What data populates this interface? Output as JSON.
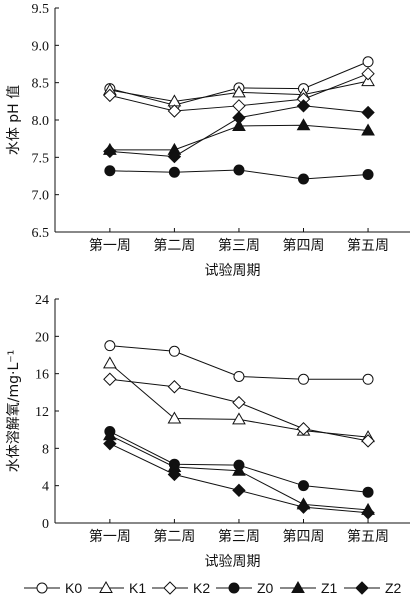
{
  "chart_data": [
    {
      "type": "line",
      "categories": [
        "第一周",
        "第二周",
        "第三周",
        "第四周",
        "第五周"
      ],
      "xlabel": "试验周期",
      "ylabel": "水体 pH 值",
      "ylim": [
        6.5,
        9.5
      ],
      "yticks": [
        "6.5",
        "7.0",
        "7.5",
        "8.0",
        "8.5",
        "9.0",
        "9.5"
      ],
      "series": [
        {
          "name": "K0",
          "values": [
            8.42,
            8.2,
            8.43,
            8.42,
            8.78
          ]
        },
        {
          "name": "K1",
          "values": [
            8.4,
            8.25,
            8.37,
            8.34,
            8.52
          ]
        },
        {
          "name": "K2",
          "values": [
            8.33,
            8.12,
            8.19,
            8.28,
            8.62
          ]
        },
        {
          "name": "Z0",
          "values": [
            7.32,
            7.3,
            7.33,
            7.21,
            7.27
          ]
        },
        {
          "name": "Z1",
          "values": [
            7.6,
            7.6,
            7.92,
            7.93,
            7.86
          ]
        },
        {
          "name": "Z2",
          "values": [
            7.58,
            7.51,
            8.03,
            8.19,
            8.1
          ]
        }
      ]
    },
    {
      "type": "line",
      "categories": [
        "第一周",
        "第二周",
        "第三周",
        "第四周",
        "第五周"
      ],
      "xlabel": "试验周期",
      "ylabel": "水体溶解氧/mg·L⁻¹",
      "ylim": [
        0,
        24
      ],
      "yticks": [
        "0",
        "4",
        "8",
        "12",
        "16",
        "20",
        "24"
      ],
      "series": [
        {
          "name": "K0",
          "values": [
            19.0,
            18.4,
            15.7,
            15.4,
            15.4
          ]
        },
        {
          "name": "K1",
          "values": [
            17.1,
            11.2,
            11.1,
            9.9,
            9.2
          ]
        },
        {
          "name": "K2",
          "values": [
            15.4,
            14.6,
            12.9,
            10.1,
            8.8
          ]
        },
        {
          "name": "Z0",
          "values": [
            9.8,
            6.3,
            6.2,
            4.0,
            3.3
          ]
        },
        {
          "name": "Z1",
          "values": [
            9.4,
            6.0,
            5.6,
            2.0,
            1.4
          ]
        },
        {
          "name": "Z2",
          "values": [
            8.5,
            5.2,
            3.5,
            1.7,
            1.1
          ]
        }
      ]
    }
  ],
  "legend": [
    "K0",
    "K1",
    "K2",
    "Z0",
    "Z1",
    "Z2"
  ]
}
